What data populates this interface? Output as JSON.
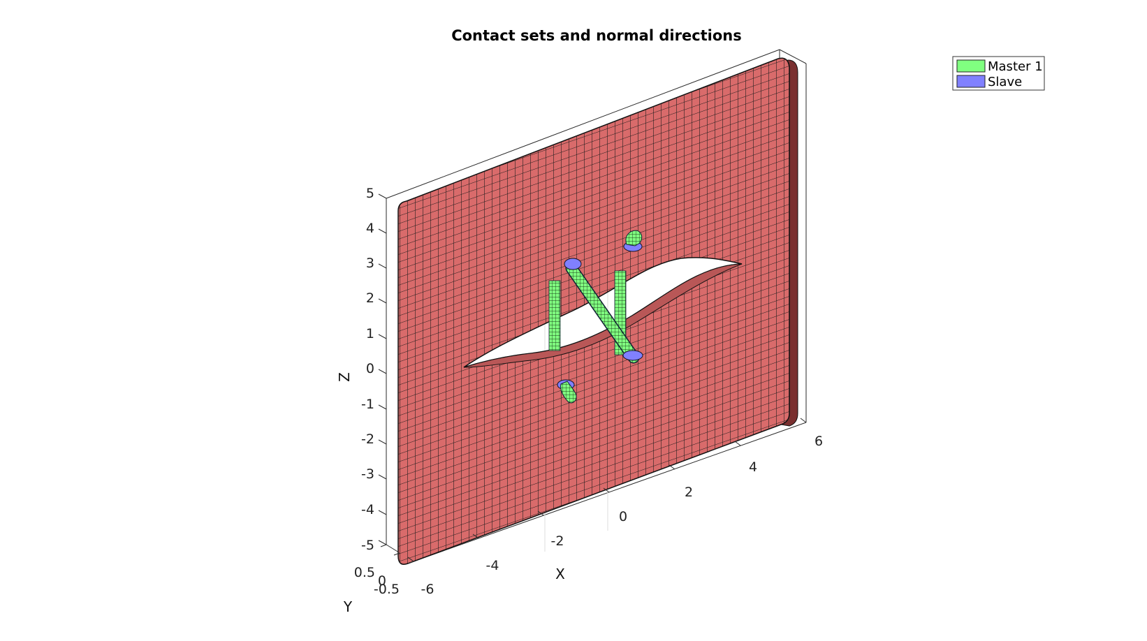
{
  "figure": {
    "title": "Contact sets and normal directions",
    "axes": {
      "x": {
        "label": "X",
        "ticks": [
          "-6",
          "-4",
          "-2",
          "0",
          "2",
          "4",
          "6"
        ]
      },
      "y": {
        "label": "Y",
        "ticks": [
          "0.5",
          "0",
          "-0.5"
        ]
      },
      "z": {
        "label": "Z",
        "ticks": [
          "5",
          "4",
          "3",
          "2",
          "1",
          "0",
          "-1",
          "-2",
          "-3",
          "-4",
          "-5"
        ]
      }
    },
    "legend": {
      "placement": "top-right",
      "items": [
        {
          "label": "Master 1",
          "color": "#80ff80"
        },
        {
          "label": "Slave",
          "color": "#8080ff"
        }
      ]
    },
    "colors": {
      "plate": "#d96b6b",
      "mesh": "#1a1a1a",
      "master": "#80ff80",
      "slave": "#8080ff"
    }
  }
}
